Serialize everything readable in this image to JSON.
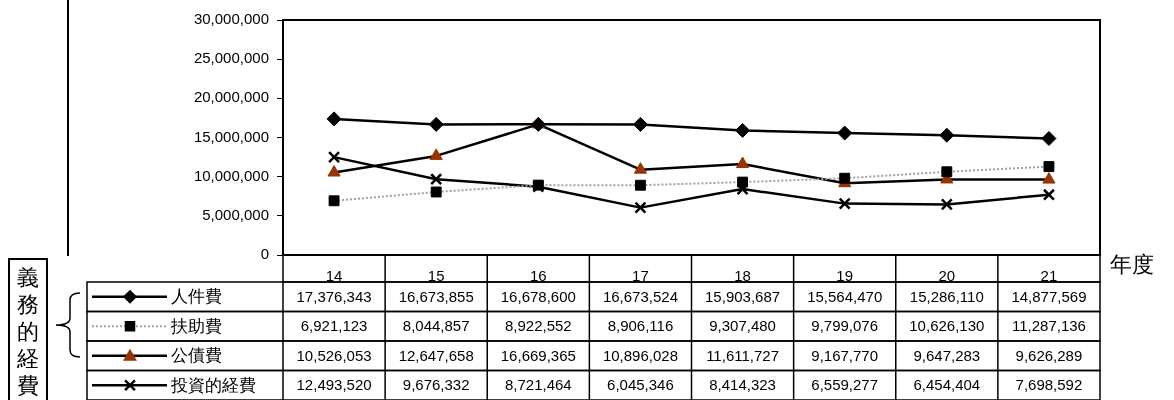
{
  "chart_data": {
    "type": "line",
    "xlabel": "年度",
    "categories": [
      "14",
      "15",
      "16",
      "17",
      "18",
      "19",
      "20",
      "21"
    ],
    "series": [
      {
        "name": "人件費",
        "color": "#000000",
        "marker": "diamond",
        "line_style": "solid",
        "values": [
          17376343,
          16673855,
          16678600,
          16673524,
          15903687,
          15564470,
          15286110,
          14877569
        ],
        "value_labels": [
          "17,376,343",
          "16,673,855",
          "16,678,600",
          "16,673,524",
          "15,903,687",
          "15,564,470",
          "15,286,110",
          "14,877,569"
        ]
      },
      {
        "name": "扶助費",
        "color": "#000000",
        "marker": "square",
        "line_style": "dotted",
        "values": [
          6921123,
          8044857,
          8922552,
          8906116,
          9307480,
          9799076,
          10626130,
          11287136
        ],
        "value_labels": [
          "6,921,123",
          "8,044,857",
          "8,922,552",
          "8,906,116",
          "9,307,480",
          "9,799,076",
          "10,626,130",
          "11,287,136"
        ]
      },
      {
        "name": "公債費",
        "color": "#993300",
        "marker": "triangle",
        "line_style": "solid",
        "values": [
          10526053,
          12647658,
          16669365,
          10896028,
          11611727,
          9167770,
          9647283,
          9626289
        ],
        "value_labels": [
          "10,526,053",
          "12,647,658",
          "16,669,365",
          "10,896,028",
          "11,611,727",
          "9,167,770",
          "9,647,283",
          "9,626,289"
        ]
      },
      {
        "name": "投資的経費",
        "color": "#000000",
        "marker": "cross",
        "line_style": "solid",
        "values": [
          12493520,
          9676332,
          8721464,
          6045346,
          8414323,
          6559277,
          6454404,
          7698592
        ],
        "value_labels": [
          "12,493,520",
          "9,676,332",
          "8,721,464",
          "6,045,346",
          "8,414,323",
          "6,559,277",
          "6,454,404",
          "7,698,592"
        ]
      }
    ],
    "ylim": [
      0,
      30000000
    ],
    "yticks": [
      {
        "value": 0,
        "label": "0"
      },
      {
        "value": 5000000,
        "label": "5,000,000"
      },
      {
        "value": 10000000,
        "label": "10,000,000"
      },
      {
        "value": 15000000,
        "label": "15,000,000"
      },
      {
        "value": 20000000,
        "label": "20,000,000"
      },
      {
        "value": 25000000,
        "label": "25,000,000"
      },
      {
        "value": 30000000,
        "label": "30,000,000"
      }
    ],
    "grid": false,
    "legend": "bottom",
    "annotations": [
      "義務的経費"
    ]
  }
}
